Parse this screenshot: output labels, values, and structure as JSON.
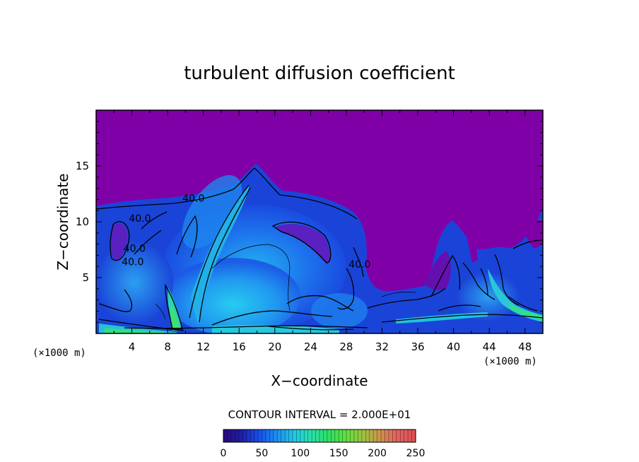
{
  "chart_data": {
    "type": "heatmap",
    "title": "turbulent diffusion coefficient",
    "xlabel": "X−coordinate",
    "ylabel": "Z−coordinate",
    "x_unit_left": "(×1000 m)",
    "x_unit_right": "(×1000 m)",
    "xlim": [
      0,
      50
    ],
    "ylim": [
      0,
      20
    ],
    "x_ticks": [
      4,
      8,
      12,
      16,
      20,
      24,
      28,
      32,
      36,
      40,
      44,
      48
    ],
    "y_ticks": [
      5,
      10,
      15
    ],
    "contour_interval_text": "CONTOUR INTERVAL = 2.000E+01",
    "contour_labels": [
      {
        "text": "40.0",
        "x": 10.9,
        "z": 11.8
      },
      {
        "text": "40.0",
        "x": 4.9,
        "z": 10.0
      },
      {
        "text": "40.0",
        "x": 4.3,
        "z": 7.3
      },
      {
        "text": "40.0",
        "x": 4.1,
        "z": 6.1
      },
      {
        "text": "40.0",
        "x": 29.5,
        "z": 5.9
      }
    ],
    "colorbar": {
      "ticks": [
        0,
        50,
        100,
        150,
        200,
        250
      ],
      "range": [
        0,
        250
      ],
      "colors": [
        "#2a0a7a",
        "#1c1ea8",
        "#1a4ce8",
        "#1e90f0",
        "#22c8e8",
        "#28e0b0",
        "#30e060",
        "#60e040",
        "#a0c040",
        "#d09050",
        "#e06060",
        "#e05050"
      ]
    },
    "colors": {
      "background_field": "#8000a8",
      "low_value": "#1a3ad0",
      "mid_value": "#2090f0",
      "high_value": "#30d8a0",
      "peak_value": "#40e060"
    }
  }
}
